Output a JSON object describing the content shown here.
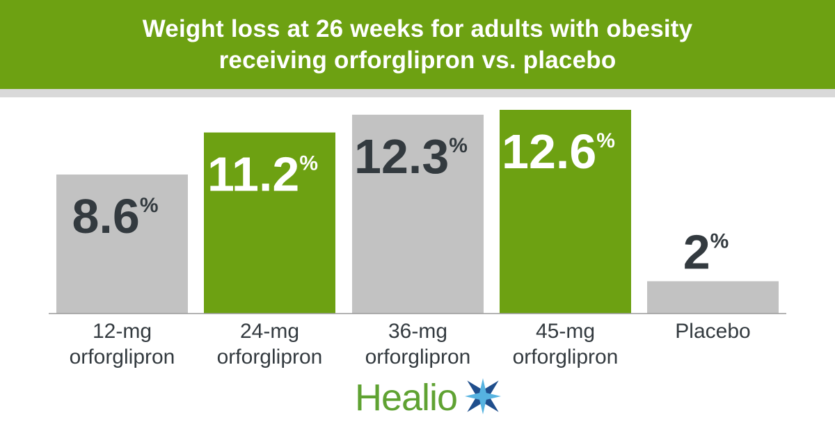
{
  "header": {
    "title_line1": "Weight loss at 26 weeks for adults with obesity",
    "title_line2": "receiving orforglipron vs. placebo"
  },
  "colors": {
    "green": "#6da112",
    "gray": "#c2c2c2",
    "stripe": "#d9d9d9",
    "dark_text": "#333a3f",
    "white_text": "#ffffff",
    "axis": "#9a9a9a",
    "logo_green": "#5fa232",
    "logo_blue": "#1f4e8c",
    "logo_light_blue": "#56b3e0"
  },
  "chart_data": {
    "type": "bar",
    "categories": [
      [
        "12-mg",
        "orforglipron"
      ],
      [
        "24-mg",
        "orforglipron"
      ],
      [
        "36-mg",
        "orforglipron"
      ],
      [
        "45-mg",
        "orforglipron"
      ],
      [
        "Placebo"
      ]
    ],
    "values": [
      8.6,
      11.2,
      12.3,
      12.6,
      2
    ],
    "value_labels": [
      "8.6",
      "11.2",
      "12.3",
      "12.6",
      "2"
    ],
    "unit": "%",
    "bar_colors": [
      "gray",
      "green",
      "gray",
      "green",
      "gray"
    ],
    "ylim": [
      0,
      12.6
    ],
    "grid": false,
    "legend": "none"
  },
  "logo": {
    "text": "Healio"
  }
}
